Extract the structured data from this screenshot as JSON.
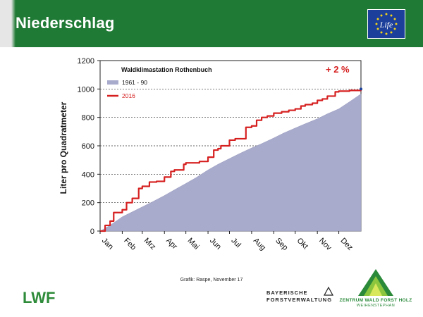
{
  "slide": {
    "title": "Niederschlag",
    "source_note": "Grafik: Raspe, November 17"
  },
  "logos": {
    "eu_life": {
      "icon": "eu-life-flag-icon",
      "text": "Life"
    },
    "lwf": {
      "text": "LWF",
      "color": "#2e8b3a"
    },
    "bayerische": {
      "line1": "BAYERISCHE",
      "line2": "FORSTVERWALTUNG"
    },
    "zentrum": {
      "line1": "ZENTRUM WALD FORST HOLZ",
      "line2": "WEIHENSTEPHAN"
    }
  },
  "colors": {
    "header_green": "#1f7a35",
    "series_2016": "#d62020",
    "series_1961_90": "#a9abcc"
  },
  "chart_data": {
    "type": "area",
    "title": "Waldklimastation Rothenbuch",
    "annotation": "+ 2 %",
    "xlabel": "",
    "ylabel": "Liter pro Quadratmeter",
    "ylim": [
      0,
      1200
    ],
    "yticks": [
      0,
      200,
      400,
      600,
      800,
      1000,
      1200
    ],
    "month_labels": [
      "Jan",
      "Feb",
      "Mrz",
      "Apr",
      "Mai",
      "Jun",
      "Jul",
      "Aug",
      "Sep",
      "Okt",
      "Nov",
      "Dez"
    ],
    "x_unit": "day of year",
    "xlim": [
      1,
      366
    ],
    "grid": "horizontal dashed",
    "legend": "top-left",
    "series": [
      {
        "name": "1961 - 90",
        "style": "area",
        "x": [
          1,
          15,
          32,
          46,
          60,
          74,
          91,
          105,
          121,
          135,
          152,
          166,
          182,
          196,
          213,
          227,
          244,
          258,
          274,
          288,
          305,
          319,
          335,
          350,
          366
        ],
        "y": [
          0,
          40,
          100,
          135,
          170,
          205,
          250,
          290,
          335,
          375,
          430,
          470,
          510,
          545,
          585,
          615,
          655,
          690,
          725,
          755,
          790,
          825,
          860,
          910,
          965
        ]
      },
      {
        "name": "2016",
        "style": "step-line",
        "x": [
          1,
          8,
          15,
          20,
          32,
          38,
          46,
          55,
          60,
          70,
          80,
          91,
          100,
          105,
          118,
          121,
          130,
          140,
          152,
          160,
          166,
          170,
          182,
          190,
          196,
          205,
          213,
          220,
          227,
          235,
          244,
          255,
          258,
          265,
          274,
          282,
          288,
          298,
          305,
          312,
          319,
          330,
          335,
          350,
          366
        ],
        "y": [
          0,
          40,
          70,
          130,
          150,
          200,
          230,
          300,
          315,
          345,
          350,
          380,
          420,
          430,
          470,
          480,
          480,
          490,
          520,
          570,
          580,
          600,
          640,
          650,
          650,
          730,
          740,
          780,
          800,
          810,
          830,
          840,
          840,
          850,
          860,
          880,
          890,
          900,
          920,
          930,
          950,
          980,
          985,
          990,
          1000
        ]
      }
    ]
  }
}
